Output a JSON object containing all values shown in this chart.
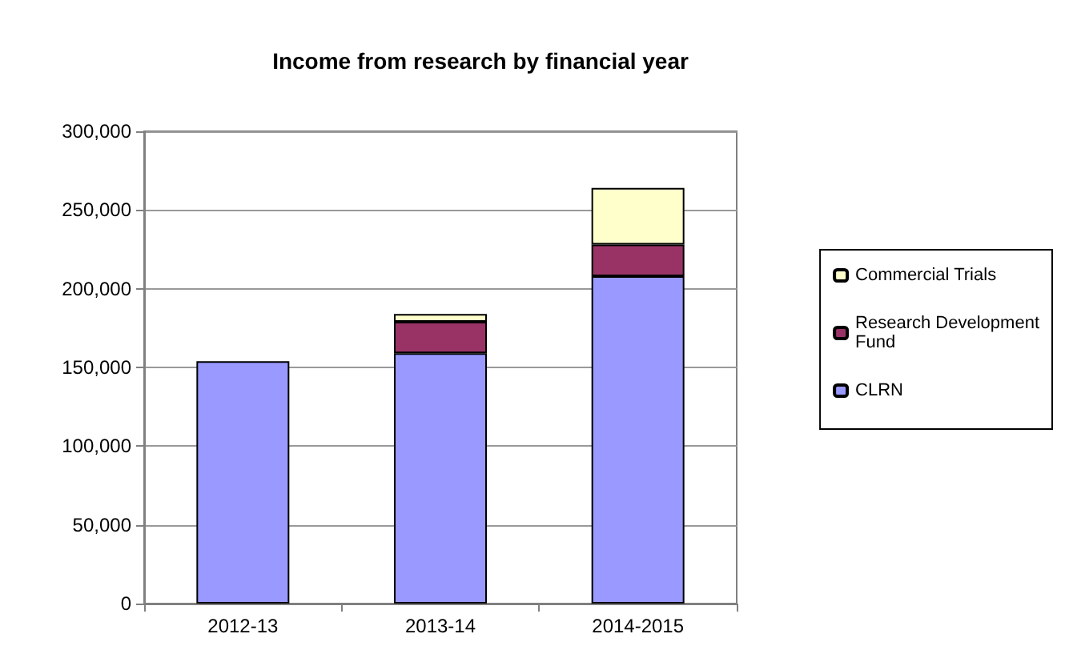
{
  "chart_data": {
    "type": "bar",
    "title": "Income from research by financial year",
    "categories": [
      "2012-13",
      "2013-14",
      "2014-2015"
    ],
    "series": [
      {
        "name": "CLRN",
        "color": "#9999ff",
        "values": [
          154000,
          159000,
          208000
        ]
      },
      {
        "name": "Research Development Fund",
        "color": "#993366",
        "values": [
          null,
          20000,
          20000
        ]
      },
      {
        "name": "Commercial Trials",
        "color": "#ffffcc",
        "values": [
          null,
          5000,
          36000
        ]
      }
    ],
    "stacked": true,
    "ylim": [
      0,
      300000
    ],
    "yticks": [
      0,
      {
        "value": 50000,
        "label": "50,000"
      },
      {
        "value": 100000,
        "label": "100,000"
      },
      {
        "value": 150000,
        "label": "150,000"
      },
      {
        "value": 200000,
        "label": "200,000"
      },
      {
        "value": 250000,
        "label": "250,000"
      },
      {
        "value": 300000,
        "label": "300,000"
      }
    ],
    "grid": "y",
    "legend": "right"
  }
}
